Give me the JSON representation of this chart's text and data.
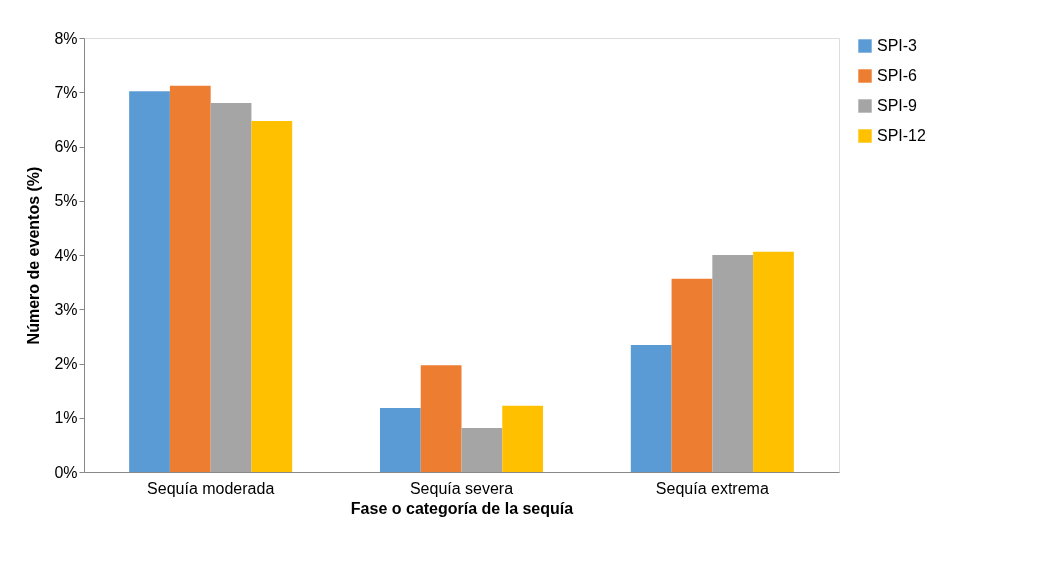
{
  "chart_data": {
    "type": "bar",
    "xlabel": "Fase o categoría de la sequía",
    "ylabel": "Número de eventos (%)",
    "categories": [
      "Sequía moderada",
      "Sequía severa",
      "Sequía extrema"
    ],
    "series": [
      {
        "name": "SPI-3",
        "color": "#5b9bd5",
        "values": [
          7.02,
          1.18,
          2.34
        ]
      },
      {
        "name": "SPI-6",
        "color": "#ed7d31",
        "values": [
          7.12,
          1.97,
          3.56
        ]
      },
      {
        "name": "SPI-9",
        "color": "#a5a5a5",
        "values": [
          6.8,
          0.81,
          4.0
        ]
      },
      {
        "name": "SPI-12",
        "color": "#ffc000",
        "values": [
          6.47,
          1.22,
          4.06
        ]
      }
    ],
    "ylim": [
      0,
      8
    ],
    "yticks": [
      {
        "value": 0,
        "label": "0%"
      },
      {
        "value": 1,
        "label": "1%"
      },
      {
        "value": 2,
        "label": "2%"
      },
      {
        "value": 3,
        "label": "3%"
      },
      {
        "value": 4,
        "label": "4%"
      },
      {
        "value": 5,
        "label": "5%"
      },
      {
        "value": 6,
        "label": "6%"
      },
      {
        "value": 7,
        "label": "7%"
      },
      {
        "value": 8,
        "label": "8%"
      }
    ],
    "grid": false,
    "legend": "right"
  }
}
